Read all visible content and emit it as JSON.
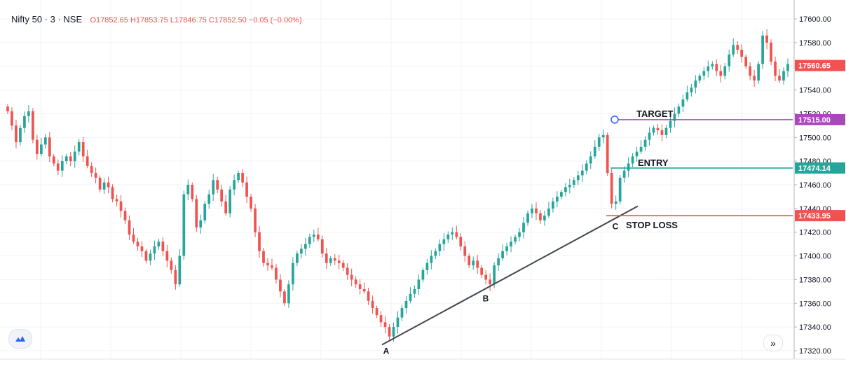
{
  "header": {
    "symbol": "Nifty 50 · 3 · NSE",
    "ohlc": "O17852.65 H17853.75 L17846.75 C17852.50 −0.05 (−0.00%)"
  },
  "chart_data": {
    "type": "candlestick",
    "ylim": [
      17317,
      17606
    ],
    "y_ticks": [
      "17600.00",
      "17580.00",
      "17560.00",
      "17540.00",
      "17520.00",
      "17500.00",
      "17480.00",
      "17460.00",
      "17440.00",
      "17420.00",
      "17400.00",
      "17380.00",
      "17360.00",
      "17340.00",
      "17320.00"
    ],
    "close_path": [
      17522,
      17510,
      17496,
      17508,
      17518,
      17522,
      17498,
      17486,
      17494,
      17500,
      17484,
      17478,
      17472,
      17480,
      17484,
      17480,
      17488,
      17496,
      17484,
      17476,
      17470,
      17466,
      17456,
      17462,
      17458,
      17448,
      17446,
      17438,
      17430,
      17418,
      17412,
      17408,
      17404,
      17396,
      17402,
      17408,
      17412,
      17404,
      17396,
      17388,
      17376,
      17400,
      17452,
      17460,
      17448,
      17424,
      17430,
      17444,
      17452,
      17464,
      17456,
      17446,
      17436,
      17456,
      17464,
      17470,
      17462,
      17450,
      17440,
      17420,
      17404,
      17394,
      17392,
      17390,
      17380,
      17370,
      17360,
      17376,
      17394,
      17402,
      17406,
      17410,
      17416,
      17418,
      17414,
      17402,
      17394,
      17398,
      17396,
      17394,
      17390,
      17384,
      17380,
      17376,
      17372,
      17370,
      17362,
      17356,
      17350,
      17344,
      17340,
      17332,
      17340,
      17348,
      17356,
      17362,
      17368,
      17372,
      17380,
      17388,
      17394,
      17400,
      17404,
      17410,
      17414,
      17418,
      17420,
      17416,
      17408,
      17400,
      17392,
      17396,
      17390,
      17384,
      17380,
      17376,
      17392,
      17398,
      17404,
      17408,
      17412,
      17416,
      17420,
      17428,
      17436,
      17440,
      17436,
      17430,
      17434,
      17440,
      17446,
      17450,
      17454,
      17458,
      17460,
      17464,
      17468,
      17472,
      17478,
      17484,
      17492,
      17500,
      17502,
      17470,
      17444,
      17446,
      17466,
      17472,
      17478,
      17484,
      17488,
      17492,
      17498,
      17504,
      17508,
      17506,
      17502,
      17508,
      17514,
      17520,
      17526,
      17532,
      17538,
      17542,
      17548,
      17552,
      17556,
      17560,
      17562,
      17556,
      17552,
      17560,
      17570,
      17578,
      17574,
      17568,
      17560,
      17552,
      17548,
      17562,
      17586,
      17580,
      17564,
      17552,
      17548,
      17556,
      17562
    ],
    "last_price": "17560.65",
    "levels": [
      {
        "label": "TARGET",
        "value": 17515.0,
        "price_label": "17515.00",
        "color": "#ab47bc"
      },
      {
        "label": "ENTRY",
        "value": 17474.14,
        "price_label": "17474.14",
        "color": "#26a69a"
      },
      {
        "label": "STOP LOSS",
        "value": 17433.95,
        "price_label": "17433.95",
        "color": "#ef5350"
      }
    ],
    "trendline": {
      "start": 17325,
      "end": 17442
    },
    "annotations": [
      {
        "label": "A",
        "value": 17325
      },
      {
        "label": "B",
        "value": 17370
      },
      {
        "label": "C",
        "value": 17433
      }
    ],
    "colors": {
      "up": "#26a69a",
      "down": "#ef5350",
      "last": "#ef5350"
    }
  },
  "controls": {
    "scroll_label": "»",
    "logo_icon": "tradingview-logo-icon",
    "scroll_icon": "scroll-to-realtime-icon"
  }
}
